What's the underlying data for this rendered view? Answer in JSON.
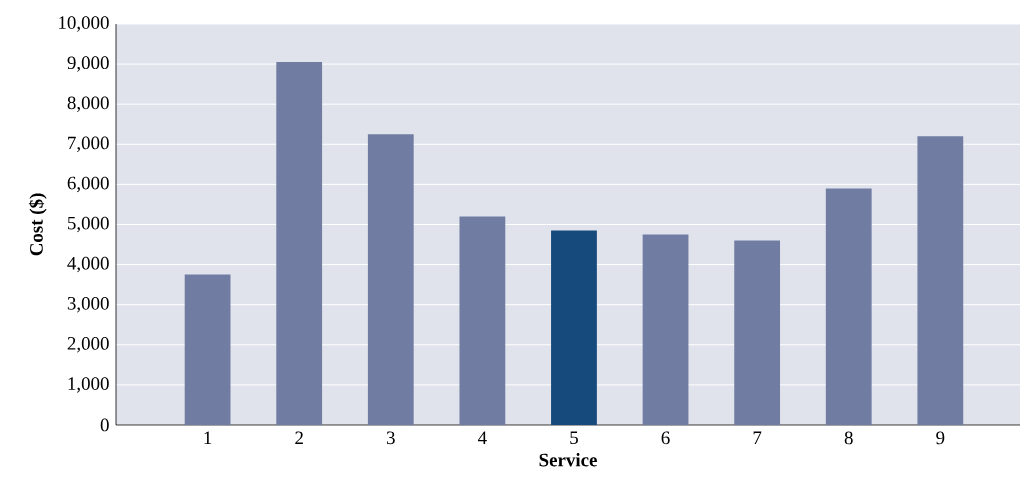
{
  "chart_data": {
    "type": "bar",
    "xlabel": "Service",
    "ylabel": "Cost ($)",
    "categories": [
      "1",
      "2",
      "3",
      "4",
      "5",
      "6",
      "7",
      "8",
      "9"
    ],
    "values": [
      3750,
      9050,
      7250,
      5200,
      4850,
      4750,
      4600,
      5900,
      7200
    ],
    "colors": [
      "#717ca3",
      "#717ca3",
      "#717ca3",
      "#717ca3",
      "#174a7c",
      "#717ca3",
      "#717ca3",
      "#717ca3",
      "#717ca3"
    ],
    "ylim": [
      0,
      10000
    ],
    "yticks": [
      0,
      {
        "value": 1000,
        "label": "1,000"
      },
      {
        "value": 2000,
        "label": "2,000"
      },
      {
        "value": 3000,
        "label": "3,000"
      },
      {
        "value": 4000,
        "label": "4,000"
      },
      {
        "value": 5000,
        "label": "5,000"
      },
      {
        "value": 6000,
        "label": "6,000"
      },
      {
        "value": 7000,
        "label": "7,000"
      },
      {
        "value": 8000,
        "label": "8,000"
      },
      {
        "value": 9000,
        "label": "9,000"
      },
      {
        "value": 10000,
        "label": "10,000"
      }
    ],
    "grid": "y"
  }
}
